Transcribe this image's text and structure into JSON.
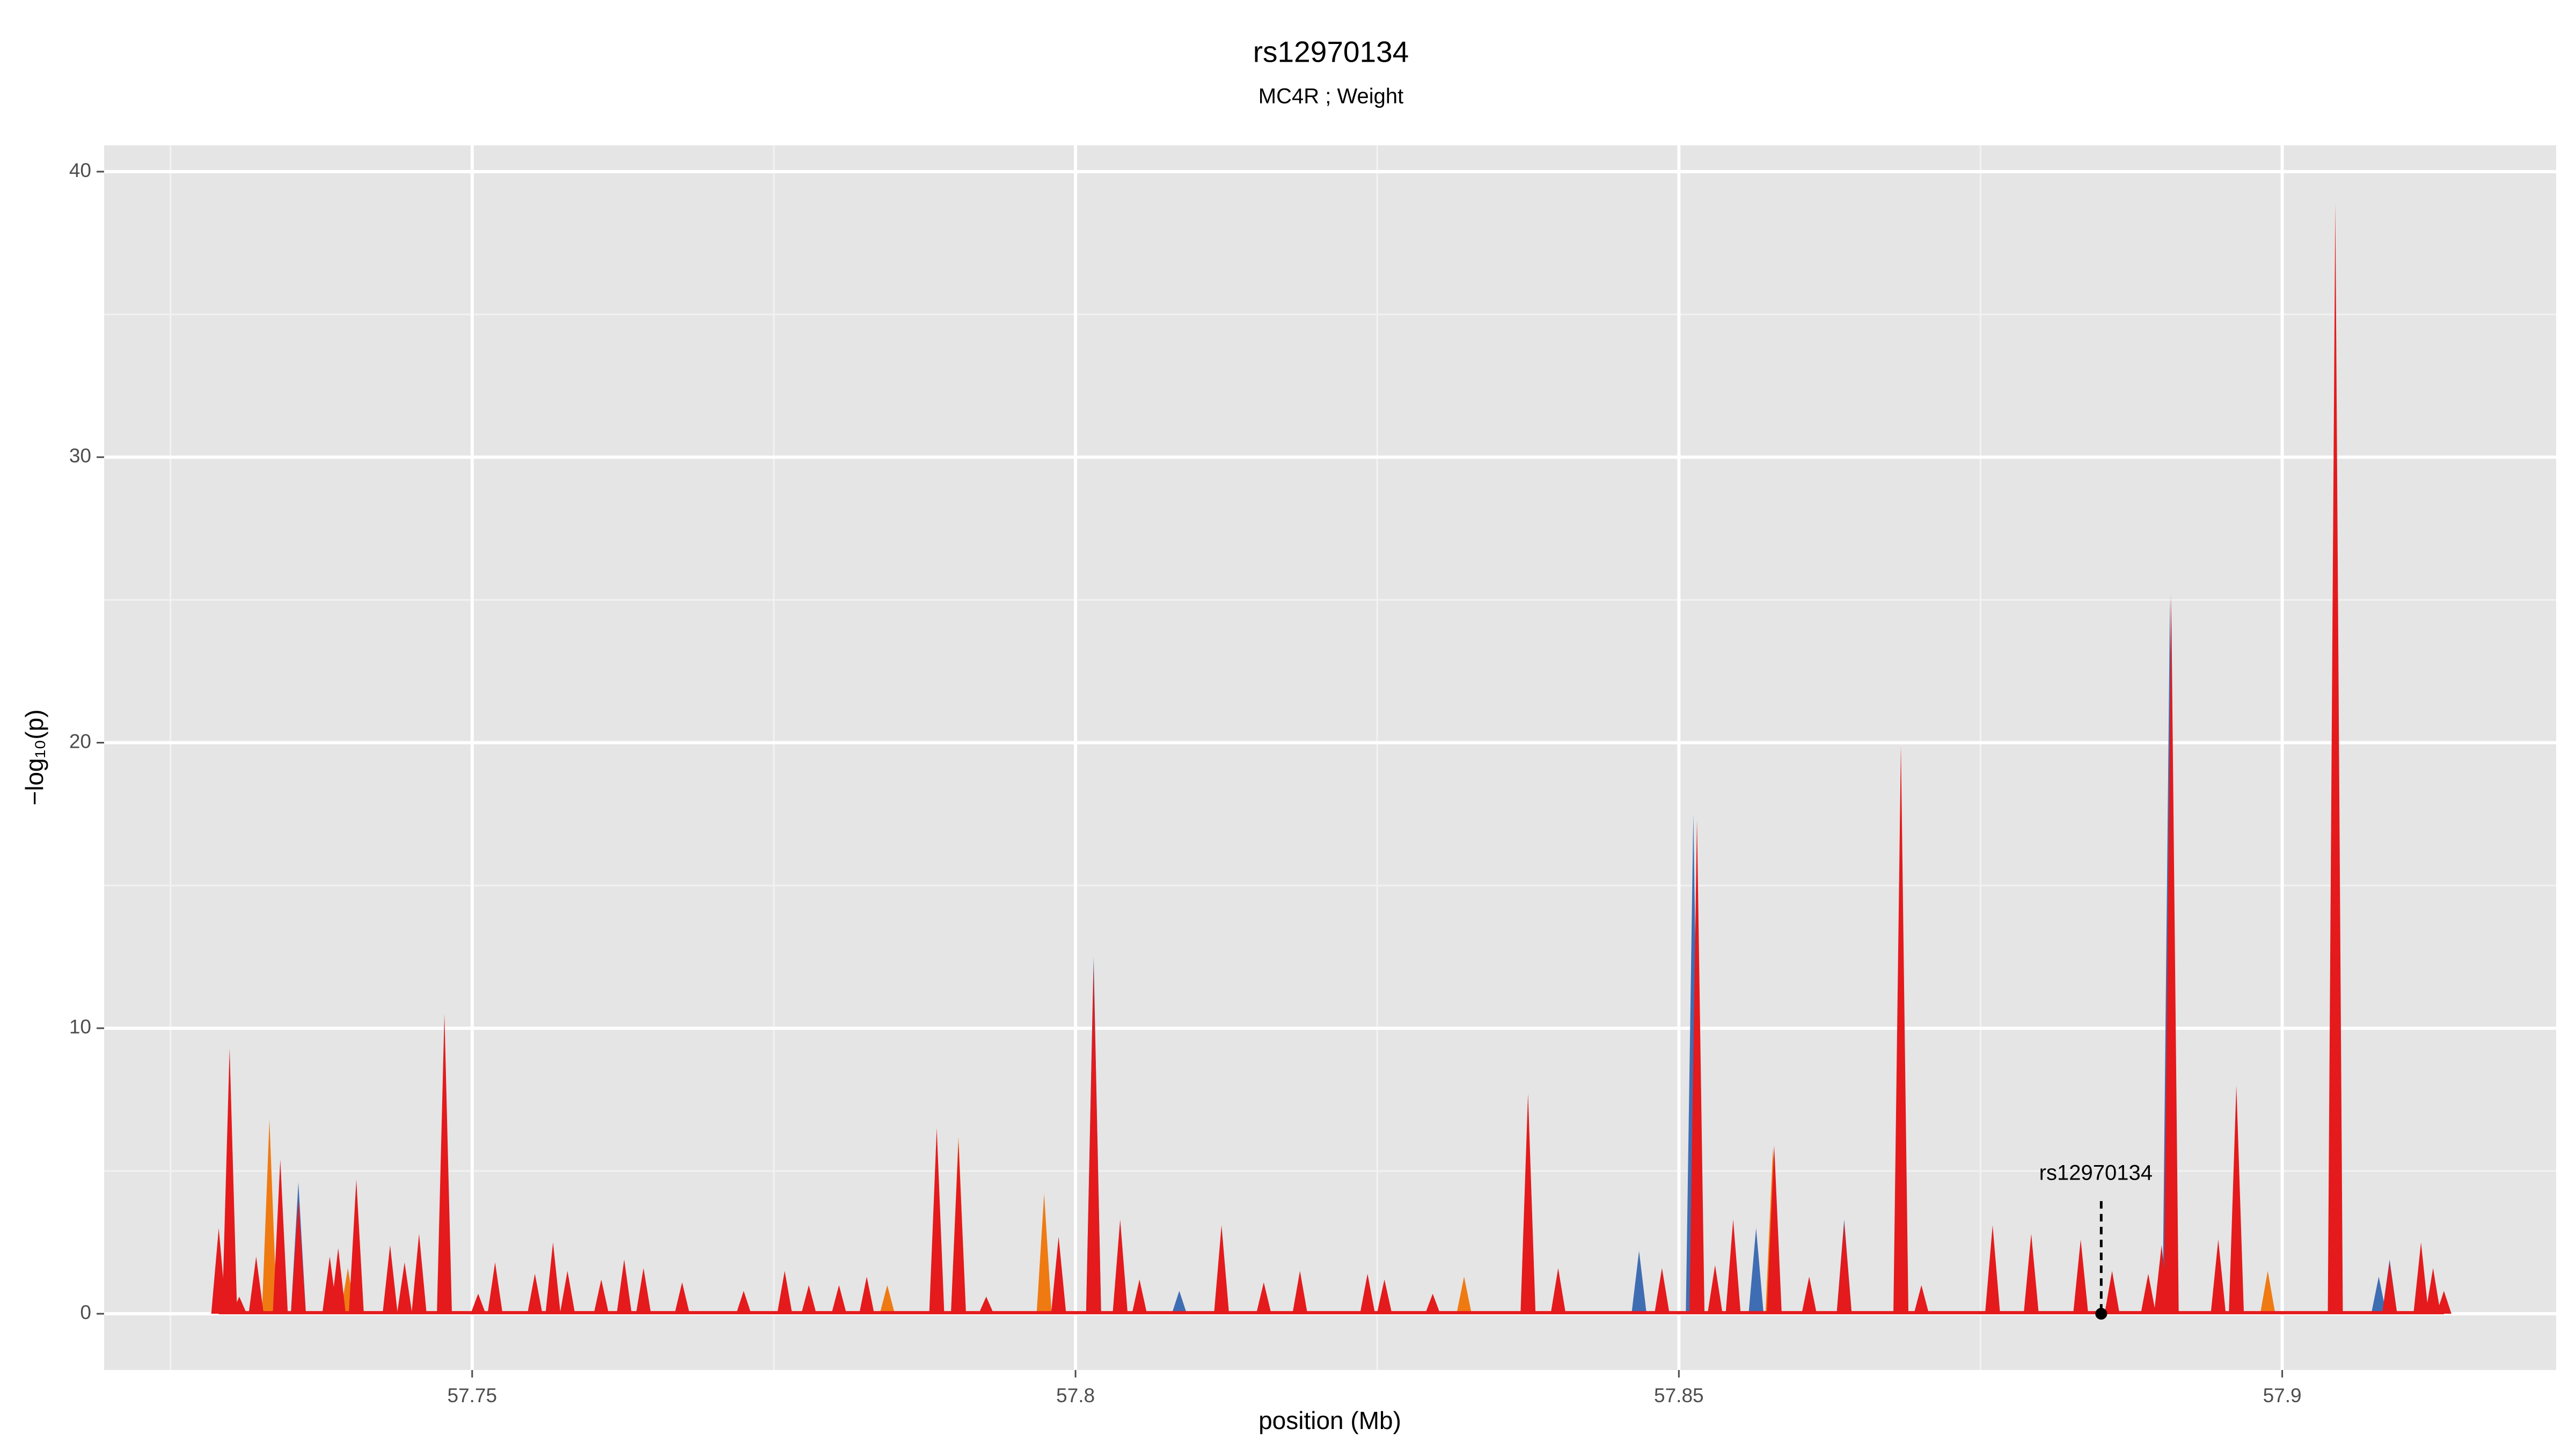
{
  "chart_data": {
    "type": "area",
    "title": "rs12970134",
    "subtitle": "MC4R ; Weight",
    "x_label": "position (Mb)",
    "y_label": "−log₁₀(p)",
    "xlim": [
      57.7195,
      57.9227
    ],
    "xticks": [
      57.75,
      57.8,
      57.85,
      57.9
    ],
    "ylim": [
      -1.97,
      40.92
    ],
    "yticks": [
      0,
      10,
      20,
      30,
      40
    ],
    "grid": true,
    "series": [
      {
        "name": "blue",
        "color": "#3f6db3",
        "x": [
          57.7356,
          57.8015,
          57.8086,
          57.8467,
          57.8512,
          57.8564,
          57.8637,
          57.8907,
          57.908,
          57.9089
        ],
        "values": [
          4.6,
          12.5,
          0.8,
          2.2,
          17.5,
          3.0,
          3.3,
          25.1,
          1.3,
          1.9
        ]
      },
      {
        "name": "orange",
        "color": "#ef7a12",
        "x": [
          57.7332,
          57.7397,
          57.7844,
          57.7903,
          57.7974,
          57.8322,
          57.8578,
          57.8988
        ],
        "values": [
          6.8,
          1.6,
          1.0,
          6.2,
          4.2,
          1.3,
          5.8,
          1.5
        ]
      },
      {
        "name": "red",
        "color": "#e41a1c",
        "x": [
          57.729,
          57.7299,
          57.7307,
          57.7321,
          57.7341,
          57.7356,
          57.7382,
          57.7389,
          57.7404,
          57.7432,
          57.7444,
          57.7456,
          57.7477,
          57.7505,
          57.7519,
          57.7552,
          57.7567,
          57.7579,
          57.7607,
          57.7626,
          57.7642,
          57.7674,
          57.7725,
          57.7759,
          57.7779,
          57.7804,
          57.7827,
          57.7885,
          57.7903,
          57.7926,
          57.7986,
          57.8015,
          57.8037,
          57.8053,
          57.8121,
          57.8156,
          57.8186,
          57.8242,
          57.8256,
          57.8296,
          57.8375,
          57.84,
          57.8486,
          57.8515,
          57.853,
          57.8545,
          57.8579,
          57.8608,
          57.8637,
          57.8684,
          57.8701,
          57.876,
          57.8792,
          57.8833,
          57.8859,
          57.8889,
          57.89,
          57.8908,
          57.8947,
          57.8962,
          57.9044,
          57.9089,
          57.9115,
          57.9125,
          57.9134
        ],
        "values": [
          3.0,
          9.3,
          0.6,
          2.0,
          5.4,
          4.0,
          2.0,
          2.3,
          4.7,
          2.4,
          1.8,
          2.8,
          10.5,
          0.7,
          1.8,
          1.4,
          2.5,
          1.5,
          1.2,
          1.9,
          1.6,
          1.1,
          0.8,
          1.5,
          1.0,
          1.0,
          1.3,
          6.5,
          6.0,
          0.6,
          2.7,
          12.2,
          3.3,
          1.2,
          3.1,
          1.1,
          1.5,
          1.4,
          1.2,
          0.7,
          7.7,
          1.6,
          1.6,
          17.3,
          1.7,
          3.3,
          5.9,
          1.3,
          3.2,
          19.9,
          1.0,
          3.1,
          2.8,
          2.6,
          1.5,
          1.4,
          2.4,
          25.2,
          2.6,
          8.0,
          38.9,
          1.8,
          2.5,
          1.6,
          0.8
        ]
      }
    ],
    "annotation": {
      "label": "rs12970134",
      "x": 57.885,
      "y": 0
    }
  }
}
